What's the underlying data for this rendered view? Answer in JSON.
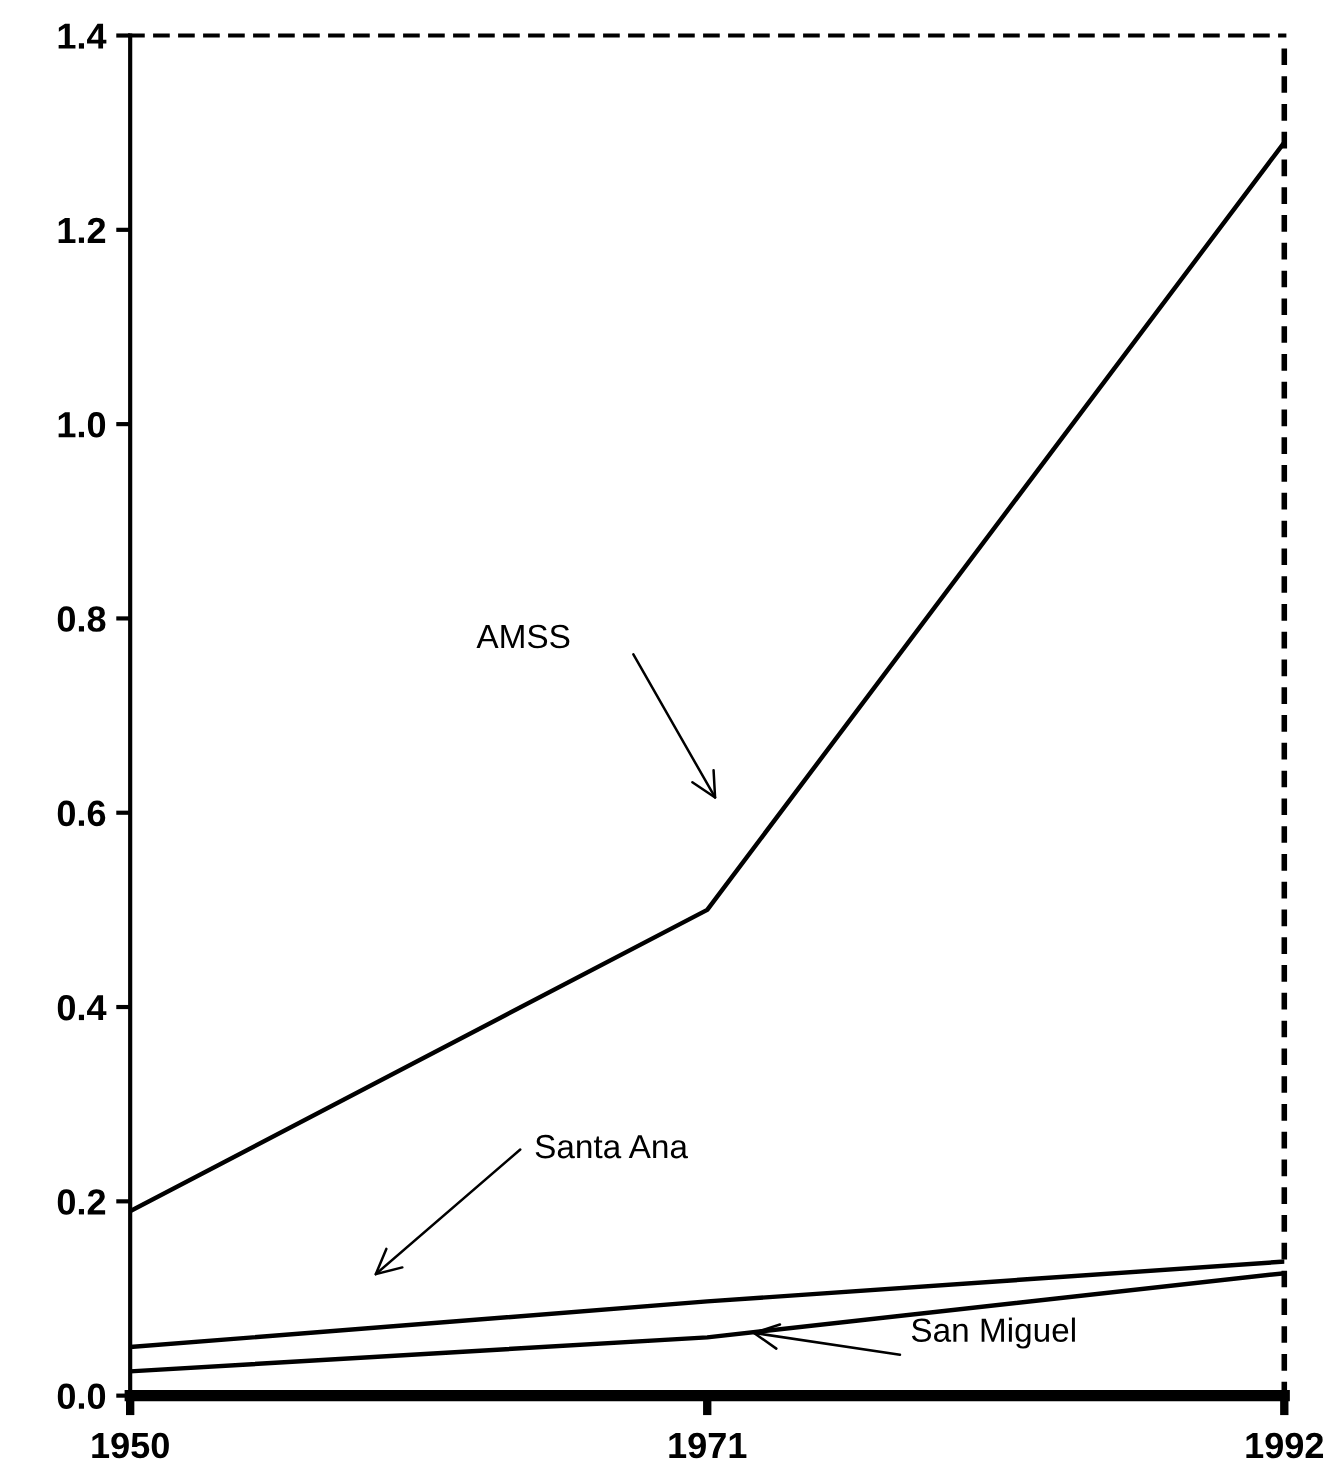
{
  "chart_data": {
    "type": "line",
    "x": [
      1950,
      1971,
      1992
    ],
    "series": [
      {
        "color": "#000000",
        "values": [
          0.19,
          0.5,
          1.29
        ]
      },
      {
        "color": "#000000",
        "values": [
          0.05,
          0.097,
          0.138
        ]
      },
      {
        "color": "#000000",
        "values": [
          0.025,
          0.06,
          0.126
        ]
      }
    ],
    "xlim": [
      1950,
      1992
    ],
    "xticks": [
      1950,
      1971,
      1992
    ],
    "ylim": [
      0,
      1.4
    ],
    "yticks": [
      {
        "value": 0,
        "label": "0.0"
      },
      0.2,
      0.4,
      0.6,
      0.8,
      {
        "value": 1,
        "label": "1.0"
      },
      1.2,
      1.4
    ],
    "annotations": [
      "AMSS",
      "Santa Ana",
      {
        "text": "San Miguel",
        "x": 1972.6,
        "y": 0.065
      }
    ],
    "grid": false,
    "legend": false,
    "marker": "none",
    "line_style": "solid"
  }
}
